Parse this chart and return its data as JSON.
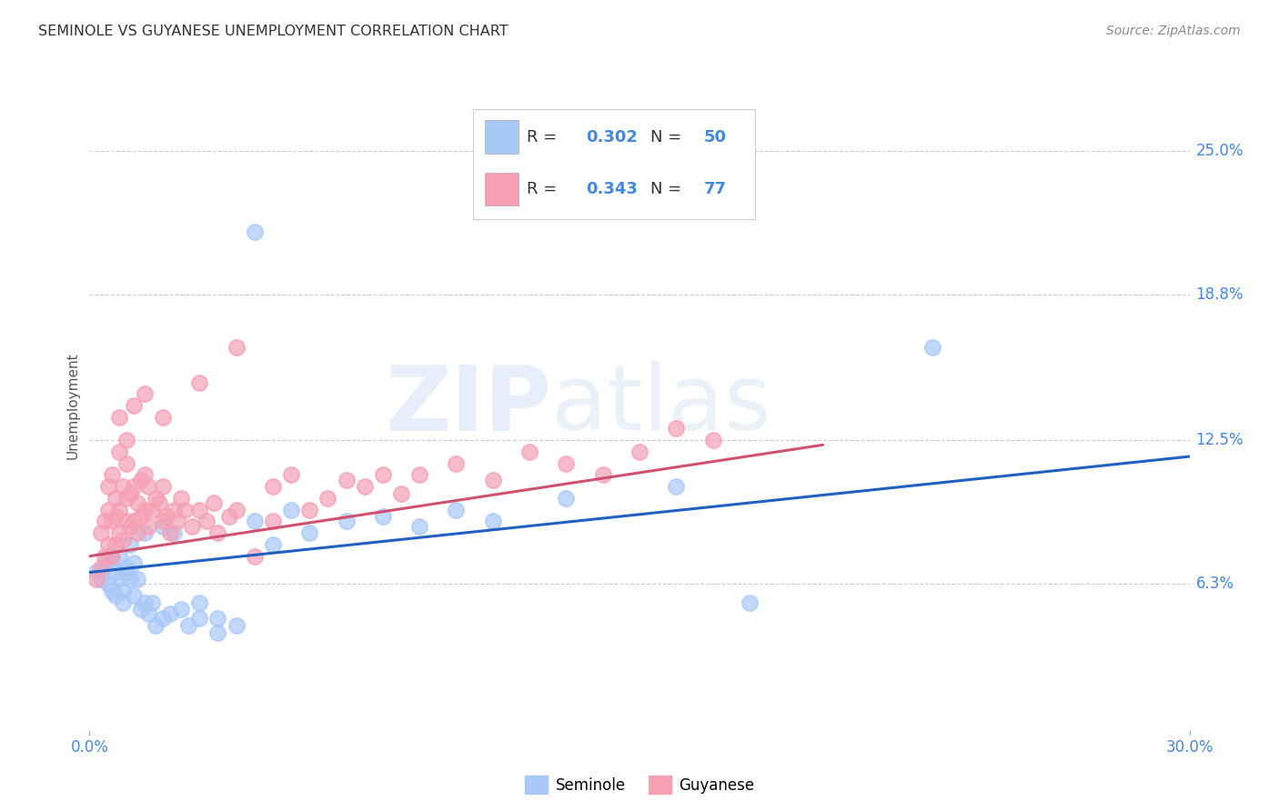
{
  "title": "SEMINOLE VS GUYANESE UNEMPLOYMENT CORRELATION CHART",
  "source": "Source: ZipAtlas.com",
  "ylabel": "Unemployment",
  "ytick_values": [
    6.3,
    12.5,
    18.8,
    25.0
  ],
  "xlim": [
    0.0,
    30.0
  ],
  "ylim": [
    0.0,
    28.0
  ],
  "seminole_color": "#a8c8f8",
  "guyanese_color": "#f5a0b5",
  "seminole_line_color": "#2060c0",
  "guyanese_line_color": "#d05070",
  "axis_label_color": "#4488dd",
  "title_color": "#333333",
  "background_color": "#ffffff",
  "grid_color": "#cccccc",
  "seminole_scatter": [
    [
      0.2,
      6.8
    ],
    [
      0.3,
      6.5
    ],
    [
      0.4,
      7.0
    ],
    [
      0.5,
      6.3
    ],
    [
      0.5,
      7.5
    ],
    [
      0.6,
      6.0
    ],
    [
      0.6,
      7.2
    ],
    [
      0.7,
      5.8
    ],
    [
      0.7,
      6.8
    ],
    [
      0.8,
      6.5
    ],
    [
      0.8,
      7.5
    ],
    [
      0.9,
      5.5
    ],
    [
      0.9,
      6.0
    ],
    [
      1.0,
      6.8
    ],
    [
      1.0,
      7.0
    ],
    [
      1.1,
      6.5
    ],
    [
      1.1,
      8.0
    ],
    [
      1.2,
      5.8
    ],
    [
      1.2,
      7.2
    ],
    [
      1.3,
      6.5
    ],
    [
      1.4,
      5.2
    ],
    [
      1.5,
      5.5
    ],
    [
      1.5,
      8.5
    ],
    [
      1.6,
      5.0
    ],
    [
      1.7,
      5.5
    ],
    [
      1.8,
      4.5
    ],
    [
      2.0,
      4.8
    ],
    [
      2.0,
      8.8
    ],
    [
      2.2,
      5.0
    ],
    [
      2.3,
      8.5
    ],
    [
      2.5,
      5.2
    ],
    [
      2.7,
      4.5
    ],
    [
      3.0,
      4.8
    ],
    [
      3.0,
      5.5
    ],
    [
      3.5,
      4.2
    ],
    [
      3.5,
      4.8
    ],
    [
      4.0,
      4.5
    ],
    [
      4.5,
      9.0
    ],
    [
      5.0,
      8.0
    ],
    [
      5.5,
      9.5
    ],
    [
      6.0,
      8.5
    ],
    [
      7.0,
      9.0
    ],
    [
      8.0,
      9.2
    ],
    [
      9.0,
      8.8
    ],
    [
      10.0,
      9.5
    ],
    [
      11.0,
      9.0
    ],
    [
      13.0,
      10.0
    ],
    [
      16.0,
      10.5
    ],
    [
      23.0,
      16.5
    ],
    [
      4.5,
      21.5
    ],
    [
      18.0,
      5.5
    ]
  ],
  "guyanese_scatter": [
    [
      0.2,
      6.5
    ],
    [
      0.3,
      7.0
    ],
    [
      0.3,
      8.5
    ],
    [
      0.4,
      7.5
    ],
    [
      0.4,
      9.0
    ],
    [
      0.5,
      8.0
    ],
    [
      0.5,
      9.5
    ],
    [
      0.5,
      10.5
    ],
    [
      0.6,
      7.5
    ],
    [
      0.6,
      9.0
    ],
    [
      0.6,
      11.0
    ],
    [
      0.7,
      8.0
    ],
    [
      0.7,
      9.2
    ],
    [
      0.7,
      10.0
    ],
    [
      0.8,
      8.5
    ],
    [
      0.8,
      9.5
    ],
    [
      0.8,
      12.0
    ],
    [
      0.9,
      8.2
    ],
    [
      0.9,
      10.5
    ],
    [
      1.0,
      9.0
    ],
    [
      1.0,
      10.0
    ],
    [
      1.0,
      11.5
    ],
    [
      1.1,
      8.8
    ],
    [
      1.1,
      10.2
    ],
    [
      1.2,
      9.0
    ],
    [
      1.2,
      10.5
    ],
    [
      1.3,
      8.5
    ],
    [
      1.3,
      9.8
    ],
    [
      1.4,
      9.2
    ],
    [
      1.4,
      10.8
    ],
    [
      1.5,
      9.5
    ],
    [
      1.5,
      11.0
    ],
    [
      1.6,
      8.8
    ],
    [
      1.6,
      10.5
    ],
    [
      1.7,
      9.5
    ],
    [
      1.8,
      10.0
    ],
    [
      1.9,
      9.8
    ],
    [
      2.0,
      9.0
    ],
    [
      2.0,
      10.5
    ],
    [
      2.1,
      9.2
    ],
    [
      2.2,
      8.5
    ],
    [
      2.3,
      9.5
    ],
    [
      2.4,
      9.0
    ],
    [
      2.5,
      10.0
    ],
    [
      2.6,
      9.5
    ],
    [
      2.8,
      8.8
    ],
    [
      3.0,
      9.5
    ],
    [
      3.2,
      9.0
    ],
    [
      3.4,
      9.8
    ],
    [
      3.5,
      8.5
    ],
    [
      3.8,
      9.2
    ],
    [
      4.0,
      9.5
    ],
    [
      4.5,
      7.5
    ],
    [
      5.0,
      10.5
    ],
    [
      5.5,
      11.0
    ],
    [
      6.0,
      9.5
    ],
    [
      6.5,
      10.0
    ],
    [
      7.0,
      10.8
    ],
    [
      7.5,
      10.5
    ],
    [
      8.0,
      11.0
    ],
    [
      8.5,
      10.2
    ],
    [
      9.0,
      11.0
    ],
    [
      10.0,
      11.5
    ],
    [
      11.0,
      10.8
    ],
    [
      12.0,
      12.0
    ],
    [
      13.0,
      11.5
    ],
    [
      14.0,
      11.0
    ],
    [
      15.0,
      12.0
    ],
    [
      16.0,
      13.0
    ],
    [
      17.0,
      12.5
    ],
    [
      2.0,
      13.5
    ],
    [
      1.5,
      14.5
    ],
    [
      3.0,
      15.0
    ],
    [
      4.0,
      16.5
    ],
    [
      0.8,
      13.5
    ],
    [
      1.0,
      12.5
    ],
    [
      1.2,
      14.0
    ],
    [
      5.0,
      9.0
    ]
  ],
  "seminole_line_x": [
    0.0,
    30.0
  ],
  "seminole_line_y": [
    6.8,
    11.8
  ],
  "guyanese_line_x": [
    0.0,
    20.0
  ],
  "guyanese_line_y": [
    7.5,
    12.3
  ]
}
